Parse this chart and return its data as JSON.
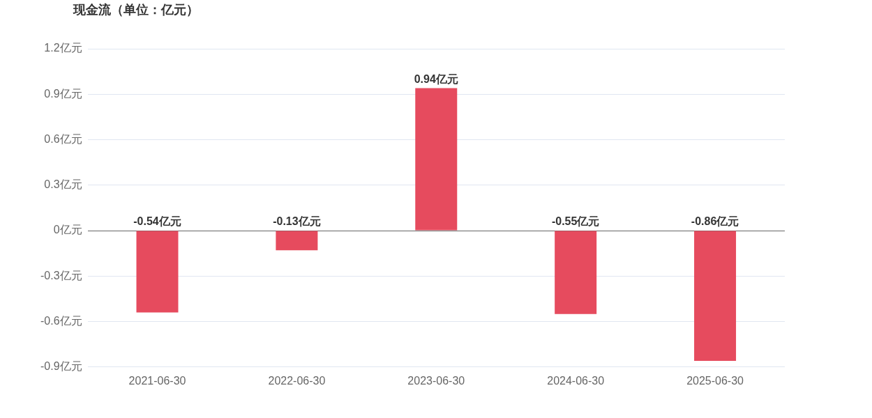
{
  "chart_data": {
    "type": "bar",
    "title": "现金流（单位：亿元）",
    "categories": [
      "2021-06-30",
      "2022-06-30",
      "2023-06-30",
      "2024-06-30",
      "2025-06-30"
    ],
    "values": [
      -0.54,
      -0.13,
      0.94,
      -0.55,
      -0.86
    ],
    "value_labels": [
      "-0.54亿元",
      "-0.13亿元",
      "0.94亿元",
      "-0.55亿元",
      "-0.86亿元"
    ],
    "color": "#e64b5e",
    "ylim": [
      -0.9,
      1.2
    ],
    "yticks": [
      {
        "value": -0.9,
        "label": "-0.9亿元"
      },
      {
        "value": -0.6,
        "label": "-0.6亿元"
      },
      {
        "value": -0.3,
        "label": "-0.3亿元"
      },
      {
        "value": 0,
        "label": "0亿元"
      },
      {
        "value": 0.3,
        "label": "0.3亿元"
      },
      {
        "value": 0.6,
        "label": "0.6亿元"
      },
      {
        "value": 0.9,
        "label": "0.9亿元"
      },
      {
        "value": 1.2,
        "label": "1.2亿元"
      }
    ],
    "grid": "y",
    "legend": false
  }
}
